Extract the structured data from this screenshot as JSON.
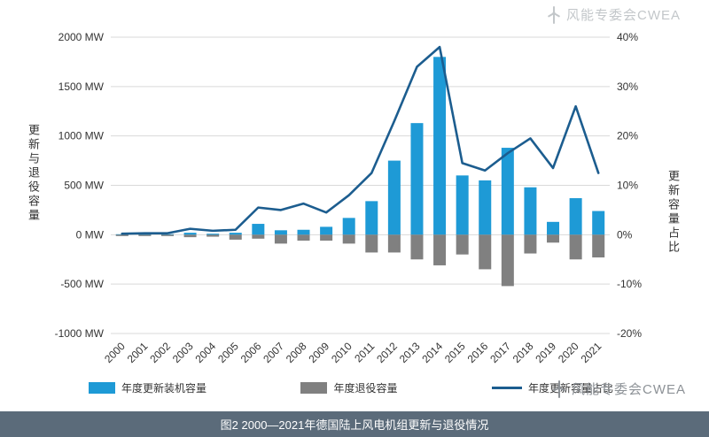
{
  "caption": "图2 2000—2021年德国陆上风电机组更新与退役情况",
  "watermark": "风能专委会CWEA",
  "colors": {
    "blue_bar": "#1e9ad6",
    "gray_bar": "#808080",
    "line": "#1c5d8f",
    "grid": "#d9d9d9",
    "caption_bg": "#5b6b7a",
    "tick_text": "#333333"
  },
  "chart_data": {
    "type": "bar+line combo",
    "title": "图2 2000—2021年德国陆上风电机组更新与退役情况",
    "categories": [
      2000,
      2001,
      2002,
      2003,
      2004,
      2005,
      2006,
      2007,
      2008,
      2009,
      2010,
      2011,
      2012,
      2013,
      2014,
      2015,
      2016,
      2017,
      2018,
      2019,
      2020,
      2021
    ],
    "series": [
      {
        "name": "年度更新装机容量",
        "type": "bar",
        "axis": "left",
        "color": "#1e9ad6",
        "values": [
          5,
          5,
          5,
          20,
          10,
          20,
          110,
          45,
          50,
          80,
          170,
          340,
          750,
          1130,
          1800,
          600,
          550,
          880,
          480,
          130,
          370,
          240
        ]
      },
      {
        "name": "年度退役容量",
        "type": "bar",
        "axis": "left",
        "color": "#808080",
        "values": [
          -5,
          -5,
          -10,
          -25,
          -20,
          -50,
          -40,
          -90,
          -60,
          -60,
          -90,
          -180,
          -180,
          -250,
          -310,
          -200,
          -350,
          -520,
          -190,
          -80,
          -250,
          -230
        ]
      },
      {
        "name": "年度更新容量占比",
        "type": "line",
        "axis": "right",
        "color": "#1c5d8f",
        "values": [
          0.2,
          0.3,
          0.3,
          1.2,
          0.8,
          1.0,
          5.5,
          5.0,
          6.3,
          4.5,
          8.0,
          12.5,
          23.0,
          34.0,
          38.0,
          14.5,
          13.0,
          16.5,
          19.5,
          13.5,
          26.0,
          12.5
        ]
      }
    ],
    "left_axis": {
      "title": "更新与退役容量",
      "unit": "MW",
      "min": -1000,
      "max": 2000,
      "tick_values": [
        2000,
        1500,
        1000,
        500,
        0,
        -500,
        -1000
      ],
      "ticks": [
        "2000 MW",
        "1500 MW",
        "1000 MW",
        "500 MW",
        "0 MW",
        "-500 MW",
        "-1000 MW"
      ]
    },
    "right_axis": {
      "title": "更新容量占比",
      "unit": "%",
      "min": -20,
      "max": 40,
      "tick_values": [
        40,
        30,
        20,
        10,
        0,
        -10,
        -20
      ],
      "ticks": [
        "40%",
        "30%",
        "20%",
        "10%",
        "0%",
        "-10%",
        "-20%"
      ]
    },
    "grid": true,
    "legend_position": "bottom"
  }
}
